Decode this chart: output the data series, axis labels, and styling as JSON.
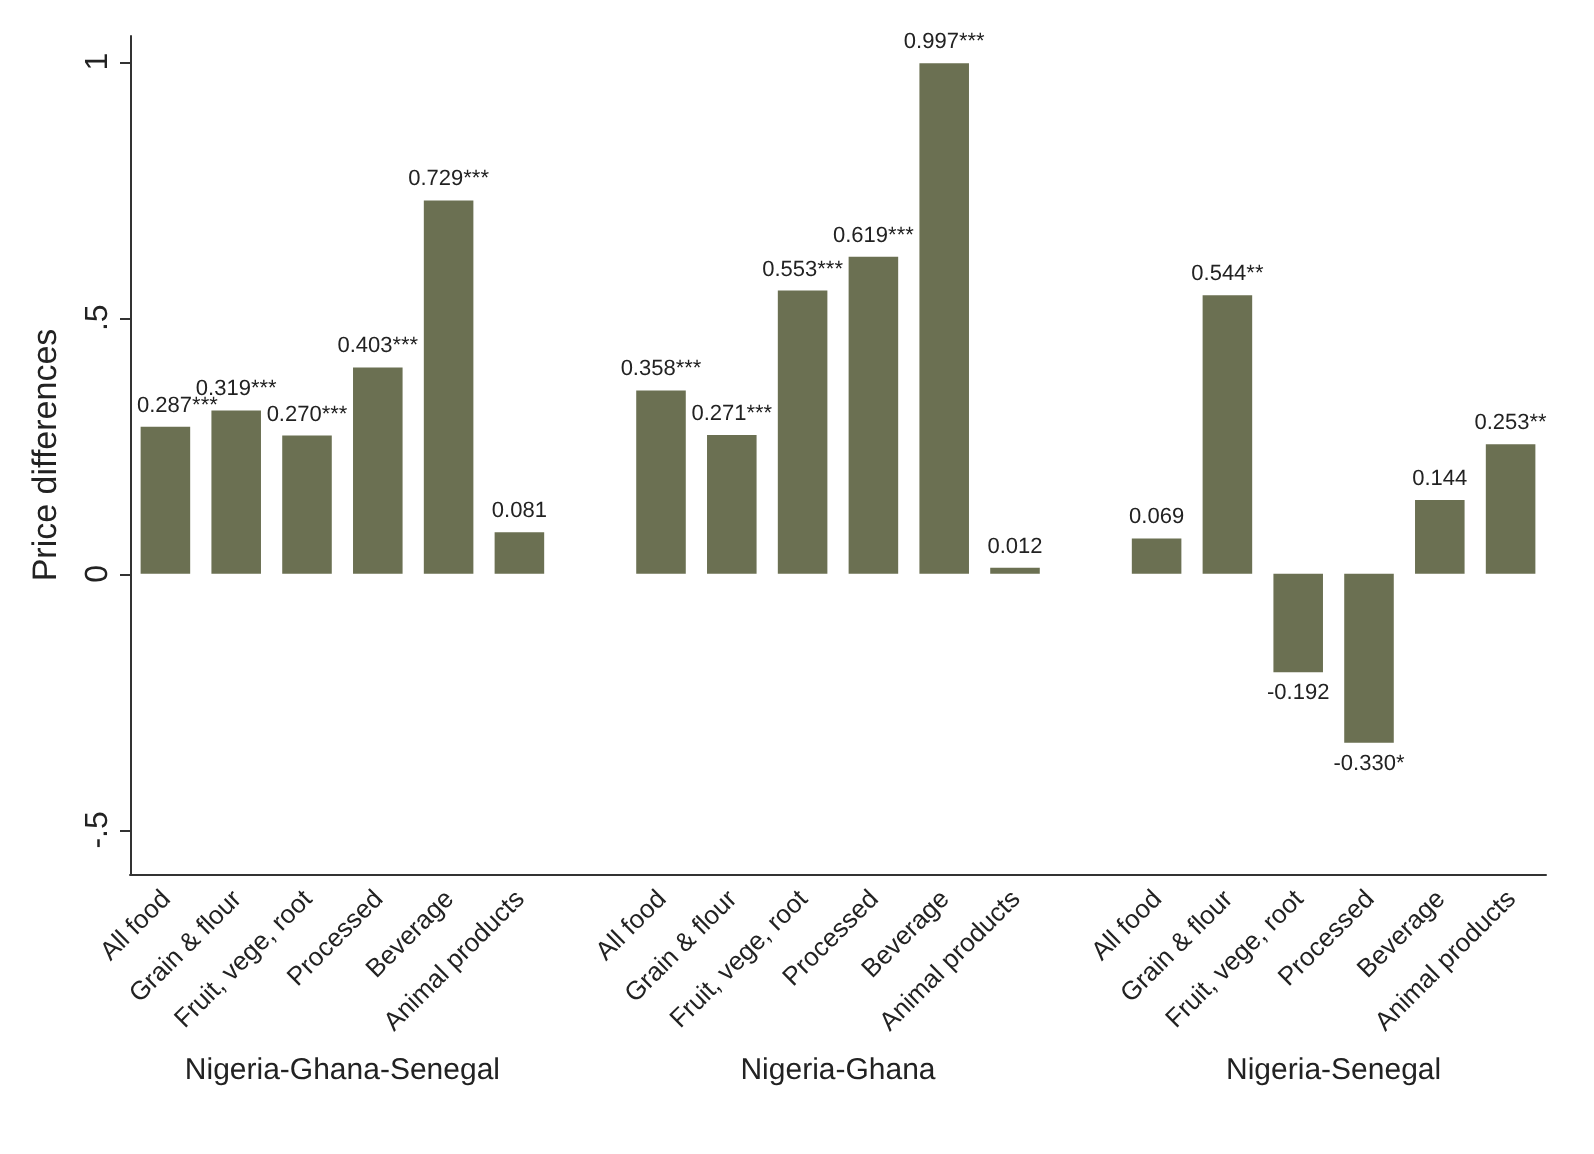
{
  "chart_data": {
    "type": "bar",
    "ylabel": "Price differences",
    "categories": [
      "All food",
      "Grain & flour",
      "Fruit, vege, root",
      "Processed",
      "Beverage",
      "Animal products",
      null,
      "All food",
      "Grain & flour",
      "Fruit, vege, root",
      "Processed",
      "Beverage",
      "Animal products",
      null,
      "All food",
      "Grain & flour",
      "Fruit, vege, root",
      "Processed",
      "Beverage",
      "Animal products"
    ],
    "values": [
      0.287,
      0.319,
      0.27,
      0.403,
      0.729,
      0.081,
      null,
      0.358,
      0.271,
      0.553,
      0.619,
      0.997,
      0.012,
      null,
      0.069,
      0.544,
      -0.192,
      -0.33,
      0.144,
      0.253
    ],
    "value_labels": [
      "0.287***",
      "0.319***",
      "0.270***",
      "0.403***",
      "0.729***",
      "0.081",
      null,
      "0.358***",
      "0.271***",
      "0.553***",
      "0.619***",
      "0.997***",
      "0.012",
      null,
      "0.069",
      "0.544**",
      "-0.192",
      "-0.330*",
      "0.144",
      "0.253**"
    ],
    "color": "#6b7052",
    "ylim": [
      -0.586,
      1.05
    ],
    "yticks": [
      {
        "value": -0.5,
        "label": "-.5"
      },
      0,
      {
        "value": 0.5,
        "label": ".5"
      },
      1
    ],
    "annotations": [
      "Nigeria-Ghana-Senegal",
      "Nigeria-Ghana",
      "Nigeria-Senegal"
    ],
    "grid": false
  }
}
